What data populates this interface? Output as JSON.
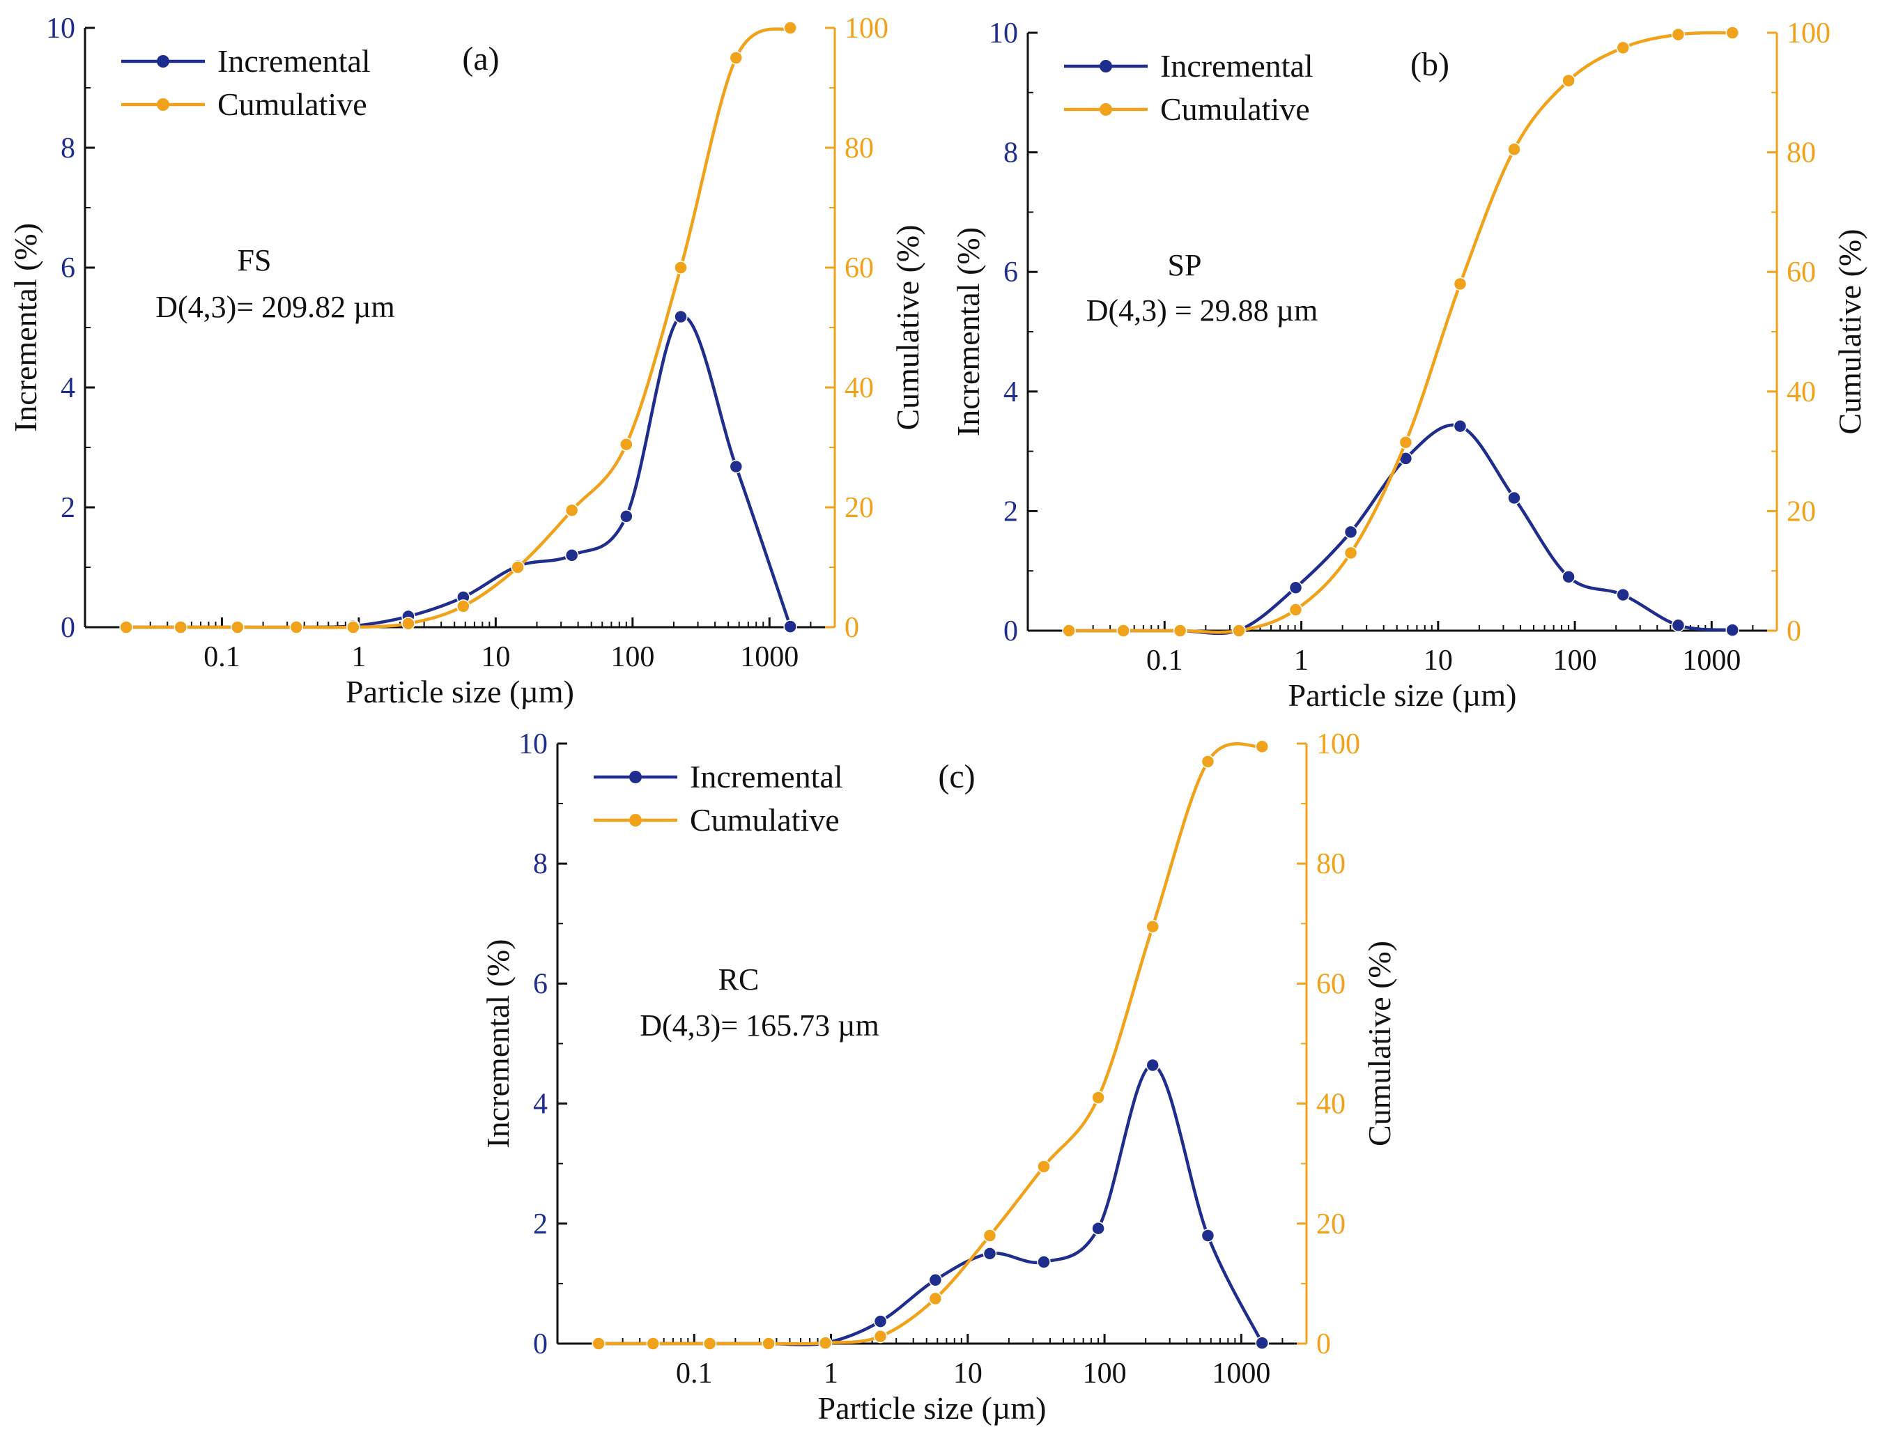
{
  "colors": {
    "incremental": "#1f2e8c",
    "cumulative": "#f0a21a",
    "axis": "#111111"
  },
  "chart_data": [
    {
      "type": "line",
      "panel": "(a)",
      "annotation_lines": [
        "FS",
        "D(4,3)= 209.82 µm"
      ],
      "xlabel": "Particle size (µm)",
      "ylabel_left": "Incremental (%)",
      "ylabel_right": "Cumulative (%)",
      "x_scale": "log",
      "xlim": [
        0.01,
        3000
      ],
      "xticks": [
        0.1,
        1,
        10,
        100,
        1000
      ],
      "xtick_labels": [
        "0.1",
        "1",
        "10",
        "100",
        "1000"
      ],
      "ylim_left": [
        0,
        10
      ],
      "yticks_left": [
        "0",
        "2",
        "4",
        "6",
        "8",
        "10"
      ],
      "ylim_right": [
        0,
        100
      ],
      "yticks_right": [
        "0",
        "20",
        "40",
        "60",
        "80",
        "100"
      ],
      "legend": [
        "Incremental",
        "Cumulative"
      ],
      "x": [
        0.02,
        0.05,
        0.13,
        0.35,
        0.91,
        2.3,
        5.8,
        14.5,
        36,
        90,
        225,
        570,
        1420
      ],
      "series": [
        {
          "name": "Incremental",
          "axis": "left",
          "values": [
            0,
            0,
            0,
            0,
            0.02,
            0.18,
            0.5,
            1.02,
            1.2,
            1.85,
            5.18,
            2.68,
            0.01
          ]
        },
        {
          "name": "Cumulative",
          "axis": "right",
          "values": [
            0,
            0,
            0,
            0,
            0,
            0.6,
            3.5,
            10,
            19.5,
            30.5,
            60,
            95,
            100
          ]
        }
      ]
    },
    {
      "type": "line",
      "panel": "(b)",
      "annotation_lines": [
        "SP",
        "D(4,3) = 29.88 µm"
      ],
      "xlabel": "Particle size (µm)",
      "ylabel_left": "Incremental (%)",
      "ylabel_right": "Cumulative (%)",
      "x_scale": "log",
      "xlim": [
        0.01,
        3000
      ],
      "xticks": [
        0.1,
        1,
        10,
        100,
        1000
      ],
      "xtick_labels": [
        "0.1",
        "1",
        "10",
        "100",
        "1000"
      ],
      "ylim_left": [
        0,
        10
      ],
      "yticks_left": [
        "0",
        "2",
        "4",
        "6",
        "8",
        "10"
      ],
      "ylim_right": [
        0,
        100
      ],
      "yticks_right": [
        "0",
        "20",
        "40",
        "60",
        "80",
        "100"
      ],
      "legend": [
        "Incremental",
        "Cumulative"
      ],
      "x": [
        0.02,
        0.05,
        0.13,
        0.35,
        0.91,
        2.3,
        5.8,
        14.5,
        36,
        90,
        225,
        570,
        1420
      ],
      "series": [
        {
          "name": "Incremental",
          "axis": "left",
          "values": [
            0,
            0,
            0,
            0.01,
            0.72,
            1.65,
            2.88,
            3.42,
            2.22,
            0.9,
            0.6,
            0.09,
            0.01
          ]
        },
        {
          "name": "Cumulative",
          "axis": "right",
          "values": [
            0,
            0,
            0,
            0,
            3.5,
            13,
            31.5,
            58,
            80.5,
            92,
            97.5,
            99.7,
            100
          ]
        }
      ]
    },
    {
      "type": "line",
      "panel": "(c)",
      "annotation_lines": [
        "RC",
        "D(4,3)= 165.73 µm"
      ],
      "xlabel": "Particle size (µm)",
      "ylabel_left": "Incremental (%)",
      "ylabel_right": "Cumulative (%)",
      "x_scale": "log",
      "xlim": [
        0.01,
        3000
      ],
      "xticks": [
        0.1,
        1,
        10,
        100,
        1000
      ],
      "xtick_labels": [
        "0.1",
        "1",
        "10",
        "100",
        "1000"
      ],
      "ylim_left": [
        0,
        10
      ],
      "yticks_left": [
        "0",
        "2",
        "4",
        "6",
        "8",
        "10"
      ],
      "ylim_right": [
        0,
        100
      ],
      "yticks_right": [
        "0",
        "20",
        "40",
        "60",
        "80",
        "100"
      ],
      "legend": [
        "Incremental",
        "Cumulative"
      ],
      "x": [
        0.02,
        0.05,
        0.13,
        0.35,
        0.91,
        2.3,
        5.8,
        14.5,
        36,
        90,
        225,
        570,
        1420
      ],
      "series": [
        {
          "name": "Incremental",
          "axis": "left",
          "values": [
            0,
            0,
            0,
            0,
            0.01,
            0.37,
            1.06,
            1.5,
            1.36,
            1.92,
            4.64,
            1.8,
            0.01
          ]
        },
        {
          "name": "Cumulative",
          "axis": "right",
          "values": [
            0,
            0,
            0,
            0,
            0.1,
            1.2,
            7.5,
            18,
            29.5,
            41,
            69.5,
            97,
            99.5
          ]
        }
      ]
    }
  ]
}
